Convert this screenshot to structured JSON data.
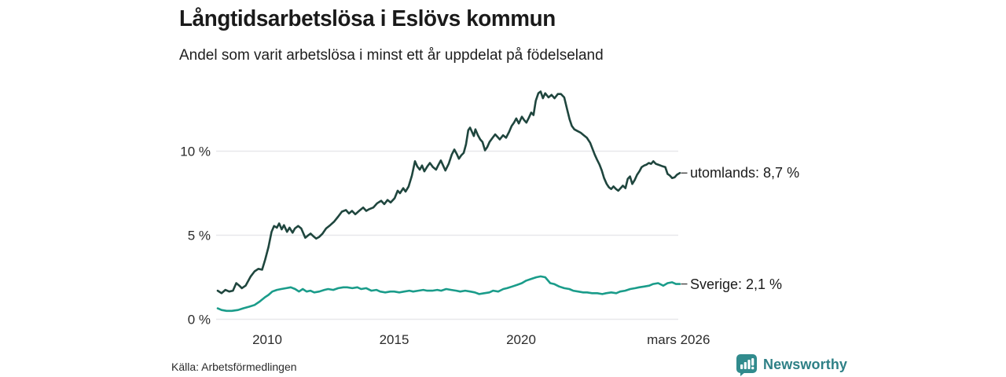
{
  "chart_data": {
    "type": "line",
    "title": "Långtidsarbetslösa i Eslövs kommun",
    "subtitle": "Andel som varit arbetslösa i minst ett år uppdelat på födelseland",
    "grid": "horizontal",
    "legend_position": "right-end-labels",
    "x_axis": {
      "range": [
        2008.0,
        2026.45
      ],
      "ticks": [
        {
          "label": "2010",
          "x": 2010
        },
        {
          "label": "2015",
          "x": 2015
        },
        {
          "label": "2020",
          "x": 2020
        },
        {
          "label": "mars 2026",
          "x": 2026.2
        }
      ]
    },
    "y_axis": {
      "unit": "%",
      "range": [
        0,
        14
      ],
      "ticks": [
        {
          "label": "10 %",
          "v": 10
        },
        {
          "label": "5 %",
          "v": 5
        },
        {
          "label": "0 %",
          "v": 0
        }
      ]
    },
    "series": [
      {
        "name": "utomlands",
        "color": "#1f463e",
        "end_label": "utomlands: 8,7 %",
        "end_value": 8.7,
        "points": [
          [
            2008.05,
            1.7
          ],
          [
            2008.2,
            1.55
          ],
          [
            2008.35,
            1.75
          ],
          [
            2008.5,
            1.65
          ],
          [
            2008.65,
            1.7
          ],
          [
            2008.78,
            2.15
          ],
          [
            2008.9,
            2.0
          ],
          [
            2009.0,
            1.85
          ],
          [
            2009.15,
            2.0
          ],
          [
            2009.35,
            2.55
          ],
          [
            2009.5,
            2.85
          ],
          [
            2009.65,
            3.0
          ],
          [
            2009.8,
            2.95
          ],
          [
            2009.92,
            3.55
          ],
          [
            2010.05,
            4.3
          ],
          [
            2010.17,
            5.2
          ],
          [
            2010.27,
            5.55
          ],
          [
            2010.38,
            5.45
          ],
          [
            2010.47,
            5.7
          ],
          [
            2010.57,
            5.35
          ],
          [
            2010.66,
            5.6
          ],
          [
            2010.78,
            5.2
          ],
          [
            2010.88,
            5.45
          ],
          [
            2011.0,
            5.15
          ],
          [
            2011.09,
            5.4
          ],
          [
            2011.22,
            5.55
          ],
          [
            2011.34,
            5.4
          ],
          [
            2011.5,
            4.85
          ],
          [
            2011.62,
            5.0
          ],
          [
            2011.71,
            5.1
          ],
          [
            2011.81,
            4.95
          ],
          [
            2011.93,
            4.8
          ],
          [
            2012.05,
            4.9
          ],
          [
            2012.18,
            5.1
          ],
          [
            2012.32,
            5.4
          ],
          [
            2012.48,
            5.6
          ],
          [
            2012.63,
            5.8
          ],
          [
            2012.79,
            6.1
          ],
          [
            2012.94,
            6.4
          ],
          [
            2013.1,
            6.5
          ],
          [
            2013.22,
            6.3
          ],
          [
            2013.34,
            6.45
          ],
          [
            2013.47,
            6.25
          ],
          [
            2013.62,
            6.45
          ],
          [
            2013.78,
            6.65
          ],
          [
            2013.9,
            6.45
          ],
          [
            2014.02,
            6.55
          ],
          [
            2014.18,
            6.65
          ],
          [
            2014.33,
            6.9
          ],
          [
            2014.49,
            7.05
          ],
          [
            2014.61,
            6.85
          ],
          [
            2014.74,
            7.1
          ],
          [
            2014.86,
            6.95
          ],
          [
            2015.02,
            7.2
          ],
          [
            2015.14,
            7.65
          ],
          [
            2015.23,
            7.5
          ],
          [
            2015.36,
            7.8
          ],
          [
            2015.45,
            7.6
          ],
          [
            2015.57,
            7.9
          ],
          [
            2015.7,
            8.55
          ],
          [
            2015.82,
            9.4
          ],
          [
            2015.91,
            9.1
          ],
          [
            2016.01,
            8.9
          ],
          [
            2016.1,
            9.15
          ],
          [
            2016.19,
            8.8
          ],
          [
            2016.31,
            9.1
          ],
          [
            2016.41,
            9.3
          ],
          [
            2016.53,
            9.05
          ],
          [
            2016.65,
            8.9
          ],
          [
            2016.75,
            9.2
          ],
          [
            2016.84,
            9.45
          ],
          [
            2016.93,
            9.15
          ],
          [
            2017.02,
            8.85
          ],
          [
            2017.15,
            9.25
          ],
          [
            2017.27,
            9.8
          ],
          [
            2017.37,
            10.1
          ],
          [
            2017.46,
            9.85
          ],
          [
            2017.55,
            9.55
          ],
          [
            2017.64,
            9.75
          ],
          [
            2017.74,
            9.9
          ],
          [
            2017.83,
            10.4
          ],
          [
            2017.92,
            11.25
          ],
          [
            2017.99,
            11.4
          ],
          [
            2018.08,
            11.1
          ],
          [
            2018.14,
            10.9
          ],
          [
            2018.2,
            11.3
          ],
          [
            2018.3,
            10.95
          ],
          [
            2018.39,
            10.7
          ],
          [
            2018.48,
            10.55
          ],
          [
            2018.58,
            10.05
          ],
          [
            2018.67,
            10.25
          ],
          [
            2018.76,
            10.55
          ],
          [
            2018.88,
            10.8
          ],
          [
            2018.98,
            11.0
          ],
          [
            2019.07,
            10.85
          ],
          [
            2019.16,
            10.7
          ],
          [
            2019.29,
            10.95
          ],
          [
            2019.41,
            10.8
          ],
          [
            2019.53,
            11.15
          ],
          [
            2019.63,
            11.5
          ],
          [
            2019.72,
            11.7
          ],
          [
            2019.81,
            11.95
          ],
          [
            2019.91,
            11.65
          ],
          [
            2020.03,
            12.05
          ],
          [
            2020.12,
            11.85
          ],
          [
            2020.21,
            11.7
          ],
          [
            2020.31,
            12.0
          ],
          [
            2020.4,
            12.3
          ],
          [
            2020.49,
            12.15
          ],
          [
            2020.58,
            13.0
          ],
          [
            2020.68,
            13.45
          ],
          [
            2020.77,
            13.55
          ],
          [
            2020.86,
            13.15
          ],
          [
            2020.95,
            13.45
          ],
          [
            2021.08,
            13.2
          ],
          [
            2021.2,
            13.35
          ],
          [
            2021.32,
            13.15
          ],
          [
            2021.45,
            13.4
          ],
          [
            2021.57,
            13.4
          ],
          [
            2021.7,
            13.2
          ],
          [
            2021.82,
            12.45
          ],
          [
            2021.91,
            11.9
          ],
          [
            2022.0,
            11.5
          ],
          [
            2022.1,
            11.3
          ],
          [
            2022.22,
            11.2
          ],
          [
            2022.35,
            11.1
          ],
          [
            2022.47,
            10.95
          ],
          [
            2022.59,
            10.8
          ],
          [
            2022.72,
            10.5
          ],
          [
            2022.81,
            10.15
          ],
          [
            2022.9,
            9.8
          ],
          [
            2022.99,
            9.5
          ],
          [
            2023.09,
            9.2
          ],
          [
            2023.18,
            8.85
          ],
          [
            2023.27,
            8.4
          ],
          [
            2023.37,
            8.05
          ],
          [
            2023.46,
            7.85
          ],
          [
            2023.55,
            7.75
          ],
          [
            2023.64,
            7.9
          ],
          [
            2023.74,
            7.75
          ],
          [
            2023.83,
            7.65
          ],
          [
            2023.92,
            7.8
          ],
          [
            2024.01,
            7.95
          ],
          [
            2024.11,
            7.8
          ],
          [
            2024.2,
            8.35
          ],
          [
            2024.29,
            8.5
          ],
          [
            2024.38,
            8.05
          ],
          [
            2024.48,
            8.3
          ],
          [
            2024.57,
            8.6
          ],
          [
            2024.66,
            8.8
          ],
          [
            2024.75,
            9.05
          ],
          [
            2024.85,
            9.15
          ],
          [
            2024.94,
            9.2
          ],
          [
            2025.03,
            9.3
          ],
          [
            2025.12,
            9.25
          ],
          [
            2025.21,
            9.4
          ],
          [
            2025.31,
            9.25
          ],
          [
            2025.4,
            9.2
          ],
          [
            2025.49,
            9.15
          ],
          [
            2025.58,
            9.1
          ],
          [
            2025.68,
            9.05
          ],
          [
            2025.77,
            8.65
          ],
          [
            2025.86,
            8.55
          ],
          [
            2025.95,
            8.4
          ],
          [
            2026.05,
            8.45
          ],
          [
            2026.14,
            8.6
          ],
          [
            2026.25,
            8.7
          ]
        ]
      },
      {
        "name": "Sverige",
        "color": "#1a9c8a",
        "end_label": "Sverige: 2,1 %",
        "end_value": 2.1,
        "points": [
          [
            2008.05,
            0.65
          ],
          [
            2008.2,
            0.55
          ],
          [
            2008.4,
            0.5
          ],
          [
            2008.6,
            0.5
          ],
          [
            2008.85,
            0.55
          ],
          [
            2009.05,
            0.65
          ],
          [
            2009.3,
            0.75
          ],
          [
            2009.5,
            0.85
          ],
          [
            2009.7,
            1.05
          ],
          [
            2009.9,
            1.3
          ],
          [
            2010.05,
            1.45
          ],
          [
            2010.2,
            1.65
          ],
          [
            2010.38,
            1.75
          ],
          [
            2010.55,
            1.8
          ],
          [
            2010.75,
            1.85
          ],
          [
            2010.93,
            1.9
          ],
          [
            2011.1,
            1.8
          ],
          [
            2011.25,
            1.65
          ],
          [
            2011.4,
            1.8
          ],
          [
            2011.55,
            1.65
          ],
          [
            2011.7,
            1.7
          ],
          [
            2011.85,
            1.6
          ],
          [
            2012.05,
            1.65
          ],
          [
            2012.25,
            1.75
          ],
          [
            2012.4,
            1.8
          ],
          [
            2012.6,
            1.75
          ],
          [
            2012.8,
            1.85
          ],
          [
            2013.0,
            1.9
          ],
          [
            2013.15,
            1.9
          ],
          [
            2013.35,
            1.85
          ],
          [
            2013.55,
            1.9
          ],
          [
            2013.7,
            1.8
          ],
          [
            2013.9,
            1.85
          ],
          [
            2014.1,
            1.7
          ],
          [
            2014.3,
            1.75
          ],
          [
            2014.45,
            1.65
          ],
          [
            2014.65,
            1.6
          ],
          [
            2014.85,
            1.65
          ],
          [
            2015.0,
            1.65
          ],
          [
            2015.2,
            1.6
          ],
          [
            2015.4,
            1.65
          ],
          [
            2015.6,
            1.7
          ],
          [
            2015.75,
            1.65
          ],
          [
            2015.95,
            1.7
          ],
          [
            2016.15,
            1.75
          ],
          [
            2016.3,
            1.7
          ],
          [
            2016.5,
            1.7
          ],
          [
            2016.7,
            1.75
          ],
          [
            2016.85,
            1.7
          ],
          [
            2017.05,
            1.8
          ],
          [
            2017.25,
            1.75
          ],
          [
            2017.45,
            1.7
          ],
          [
            2017.6,
            1.65
          ],
          [
            2017.8,
            1.7
          ],
          [
            2018.0,
            1.65
          ],
          [
            2018.18,
            1.6
          ],
          [
            2018.35,
            1.5
          ],
          [
            2018.55,
            1.55
          ],
          [
            2018.75,
            1.6
          ],
          [
            2018.9,
            1.7
          ],
          [
            2019.1,
            1.65
          ],
          [
            2019.3,
            1.8
          ],
          [
            2019.45,
            1.85
          ],
          [
            2019.65,
            1.95
          ],
          [
            2019.85,
            2.05
          ],
          [
            2020.03,
            2.15
          ],
          [
            2020.2,
            2.3
          ],
          [
            2020.4,
            2.4
          ],
          [
            2020.6,
            2.5
          ],
          [
            2020.77,
            2.55
          ],
          [
            2020.95,
            2.5
          ],
          [
            2021.15,
            2.15
          ],
          [
            2021.3,
            2.1
          ],
          [
            2021.5,
            1.95
          ],
          [
            2021.7,
            1.85
          ],
          [
            2021.9,
            1.8
          ],
          [
            2022.05,
            1.7
          ],
          [
            2022.25,
            1.65
          ],
          [
            2022.45,
            1.6
          ],
          [
            2022.6,
            1.6
          ],
          [
            2022.8,
            1.55
          ],
          [
            2023.0,
            1.55
          ],
          [
            2023.2,
            1.5
          ],
          [
            2023.35,
            1.55
          ],
          [
            2023.55,
            1.6
          ],
          [
            2023.75,
            1.55
          ],
          [
            2023.9,
            1.65
          ],
          [
            2024.1,
            1.7
          ],
          [
            2024.3,
            1.8
          ],
          [
            2024.5,
            1.85
          ],
          [
            2024.65,
            1.9
          ],
          [
            2024.85,
            1.95
          ],
          [
            2025.05,
            2.0
          ],
          [
            2025.2,
            2.1
          ],
          [
            2025.4,
            2.15
          ],
          [
            2025.6,
            2.0
          ],
          [
            2025.77,
            2.15
          ],
          [
            2025.95,
            2.2
          ],
          [
            2026.1,
            2.1
          ],
          [
            2026.25,
            2.1
          ]
        ]
      }
    ]
  },
  "footer": {
    "source": "Källa: Arbetsförmedlingen",
    "brand": "Newsworthy"
  },
  "colors": {
    "utomlands_line": "#1f463e",
    "sverige_line": "#1a9c8a",
    "gridline": "#e8e8eb",
    "text": "#1a1a1a",
    "brand_teal": "#2e8086"
  }
}
